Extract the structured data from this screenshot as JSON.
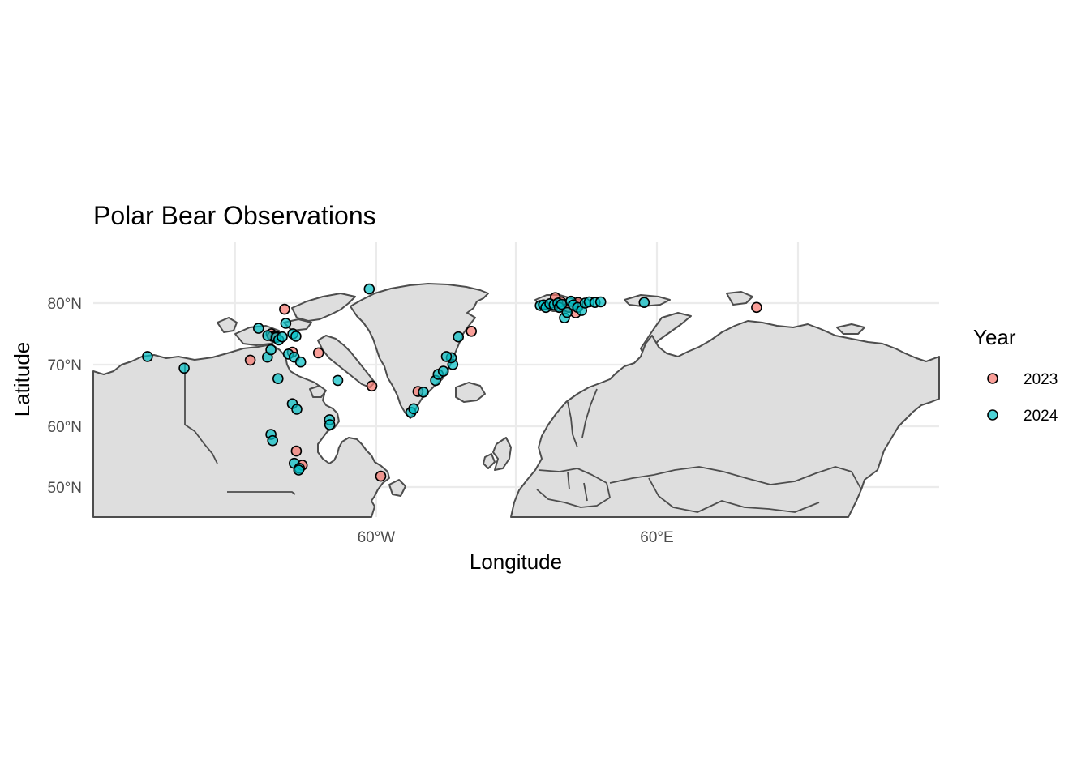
{
  "title": "Polar Bear Observations",
  "xlabel": "Longitude",
  "ylabel": "Latitude",
  "x_ticks": [
    "60°W",
    "60°E"
  ],
  "y_ticks": [
    "50°N",
    "60°N",
    "70°N",
    "80°N"
  ],
  "legend": {
    "title": "Year",
    "items": [
      {
        "label": "2023",
        "color": "#F8766D"
      },
      {
        "label": "2024",
        "color": "#00BFC4"
      }
    ]
  },
  "chart_data": {
    "type": "scatter",
    "projection": "equirectangular",
    "xlim": [
      -180,
      180
    ],
    "ylim": [
      45,
      90
    ],
    "x_tick_values": [
      -60,
      60
    ],
    "y_tick_values": [
      50,
      60,
      70,
      80
    ],
    "grid": true,
    "legend_position": "right",
    "series": [
      {
        "name": "2023",
        "color": "#F8766D",
        "points": [
          [
            -98.3,
            79.0
          ],
          [
            -112.9,
            70.7
          ],
          [
            -104.0,
            75.0
          ],
          [
            -103.5,
            74.6
          ],
          [
            -102.0,
            74.6
          ],
          [
            -95.0,
            72.0
          ],
          [
            -93.3,
            55.9
          ],
          [
            -90.8,
            53.6
          ],
          [
            -83.9,
            71.9
          ],
          [
            -61.2,
            66.5
          ],
          [
            -57.4,
            51.8
          ],
          [
            -41.6,
            65.6
          ],
          [
            -18.9,
            75.4
          ],
          [
            16.8,
            80.9
          ],
          [
            19.2,
            80.2
          ],
          [
            22.6,
            79.3
          ],
          [
            26.5,
            80.1
          ],
          [
            25.5,
            78.4
          ],
          [
            102.4,
            79.3
          ]
        ]
      },
      {
        "name": "2024",
        "color": "#00BFC4",
        "points": [
          [
            -156.6,
            71.3
          ],
          [
            -141.0,
            69.4
          ],
          [
            -109.4,
            75.9
          ],
          [
            -105.5,
            74.7
          ],
          [
            -105.6,
            71.2
          ],
          [
            -104.1,
            72.4
          ],
          [
            -101.9,
            74.4
          ],
          [
            -100.8,
            74.0
          ],
          [
            -99.3,
            74.5
          ],
          [
            -97.8,
            76.7
          ],
          [
            -96.7,
            71.7
          ],
          [
            -94.8,
            75.0
          ],
          [
            -93.5,
            74.6
          ],
          [
            -94.2,
            71.2
          ],
          [
            -91.5,
            70.4
          ],
          [
            -101.1,
            67.7
          ],
          [
            -104.1,
            58.6
          ],
          [
            -103.4,
            57.6
          ],
          [
            -95.0,
            63.6
          ],
          [
            -93.1,
            62.7
          ],
          [
            -94.2,
            53.9
          ],
          [
            -92.0,
            53.1
          ],
          [
            -92.3,
            52.8
          ],
          [
            -79.2,
            61.0
          ],
          [
            -79.1,
            60.2
          ],
          [
            -75.7,
            67.4
          ],
          [
            -62.3,
            82.3
          ],
          [
            -44.6,
            62.2
          ],
          [
            -43.4,
            62.8
          ],
          [
            -39.3,
            65.5
          ],
          [
            -34.1,
            67.4
          ],
          [
            -33.0,
            68.4
          ],
          [
            -30.8,
            68.9
          ],
          [
            -26.8,
            70.0
          ],
          [
            -27.4,
            71.1
          ],
          [
            -29.5,
            71.3
          ],
          [
            -24.4,
            74.5
          ],
          [
            10.4,
            79.6
          ],
          [
            11.8,
            79.7
          ],
          [
            12.8,
            79.3
          ],
          [
            14.5,
            79.9
          ],
          [
            16.3,
            79.7
          ],
          [
            17.9,
            80.0
          ],
          [
            18.5,
            79.3
          ],
          [
            19.5,
            79.8
          ],
          [
            20.7,
            77.6
          ],
          [
            21.8,
            78.5
          ],
          [
            23.4,
            80.3
          ],
          [
            24.5,
            79.7
          ],
          [
            26.3,
            79.3
          ],
          [
            28.0,
            78.8
          ],
          [
            29.5,
            80.0
          ],
          [
            31.2,
            80.2
          ],
          [
            33.7,
            80.1
          ],
          [
            36.1,
            80.2
          ],
          [
            54.6,
            80.1
          ]
        ]
      }
    ]
  }
}
